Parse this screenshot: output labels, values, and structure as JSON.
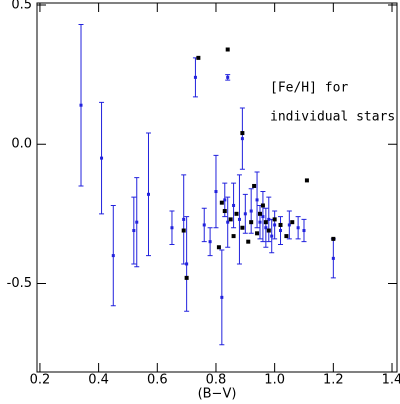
{
  "chart_data": {
    "type": "scatter",
    "xlabel": "(B−V)",
    "annotation": [
      "[Fe/H] for",
      "individual stars"
    ],
    "xlim": [
      0.19,
      1.417
    ],
    "ylim": [
      -0.818,
      0.507
    ],
    "xticks": [
      0.2,
      0.4,
      0.6,
      0.8,
      {
        "value": 1,
        "label": "1.0"
      },
      1.2,
      1.4
    ],
    "yticks": [
      -0.5,
      {
        "value": 0,
        "label": "0.0"
      },
      0.5
    ],
    "series": [
      {
        "color": "#2222dd",
        "x": [
          0.34,
          0.41,
          0.45,
          0.52,
          0.53,
          0.57,
          0.65,
          0.69,
          0.7,
          0.73,
          0.84,
          0.82,
          0.89,
          0.8,
          0.88,
          0.86,
          0.84,
          0.9,
          0.92,
          0.95,
          0.96,
          0.97,
          0.98,
          1.0,
          1.02,
          1.05,
          1.08,
          1.1,
          1.2,
          0.78,
          0.76,
          0.94,
          0.99,
          0.83
        ],
        "values": [
          0.14,
          -0.05,
          -0.4,
          -0.31,
          -0.28,
          -0.18,
          -0.3,
          -0.27,
          -0.43,
          0.24,
          0.24,
          -0.55,
          0.02,
          -0.17,
          -0.27,
          -0.22,
          -0.28,
          -0.25,
          -0.24,
          -0.28,
          -0.26,
          -0.3,
          -0.27,
          -0.29,
          -0.31,
          -0.29,
          -0.3,
          -0.31,
          -0.41,
          -0.35,
          -0.29,
          -0.2,
          -0.33,
          -0.2
        ],
        "errors": [
          0.29,
          0.2,
          0.18,
          0.12,
          0.16,
          0.22,
          0.06,
          0.16,
          0.17,
          0.07,
          0.01,
          0.17,
          0.11,
          0.13,
          0.16,
          0.08,
          0.09,
          0.07,
          0.08,
          0.06,
          0.09,
          0.07,
          0.08,
          0.05,
          0.05,
          0.05,
          0.04,
          0.04,
          0.07,
          0.05,
          0.06,
          0.1,
          0.06,
          0.06
        ]
      },
      {
        "color": "#000000",
        "x": [
          0.74,
          0.84,
          0.89,
          0.93,
          1.11,
          1.2,
          0.7,
          0.81,
          0.82,
          0.83,
          0.85,
          0.87,
          0.89,
          0.92,
          0.95,
          0.96,
          0.97,
          0.98,
          1.0,
          1.02,
          1.04,
          1.06,
          0.86,
          0.94,
          0.91,
          0.69
        ],
        "values": [
          0.31,
          0.34,
          0.04,
          -0.15,
          -0.13,
          -0.34,
          -0.48,
          -0.37,
          -0.21,
          -0.24,
          -0.27,
          -0.25,
          -0.3,
          -0.28,
          -0.25,
          -0.22,
          -0.28,
          -0.31,
          -0.27,
          -0.29,
          -0.33,
          -0.28,
          -0.33,
          -0.32,
          -0.35,
          -0.31
        ]
      }
    ]
  }
}
